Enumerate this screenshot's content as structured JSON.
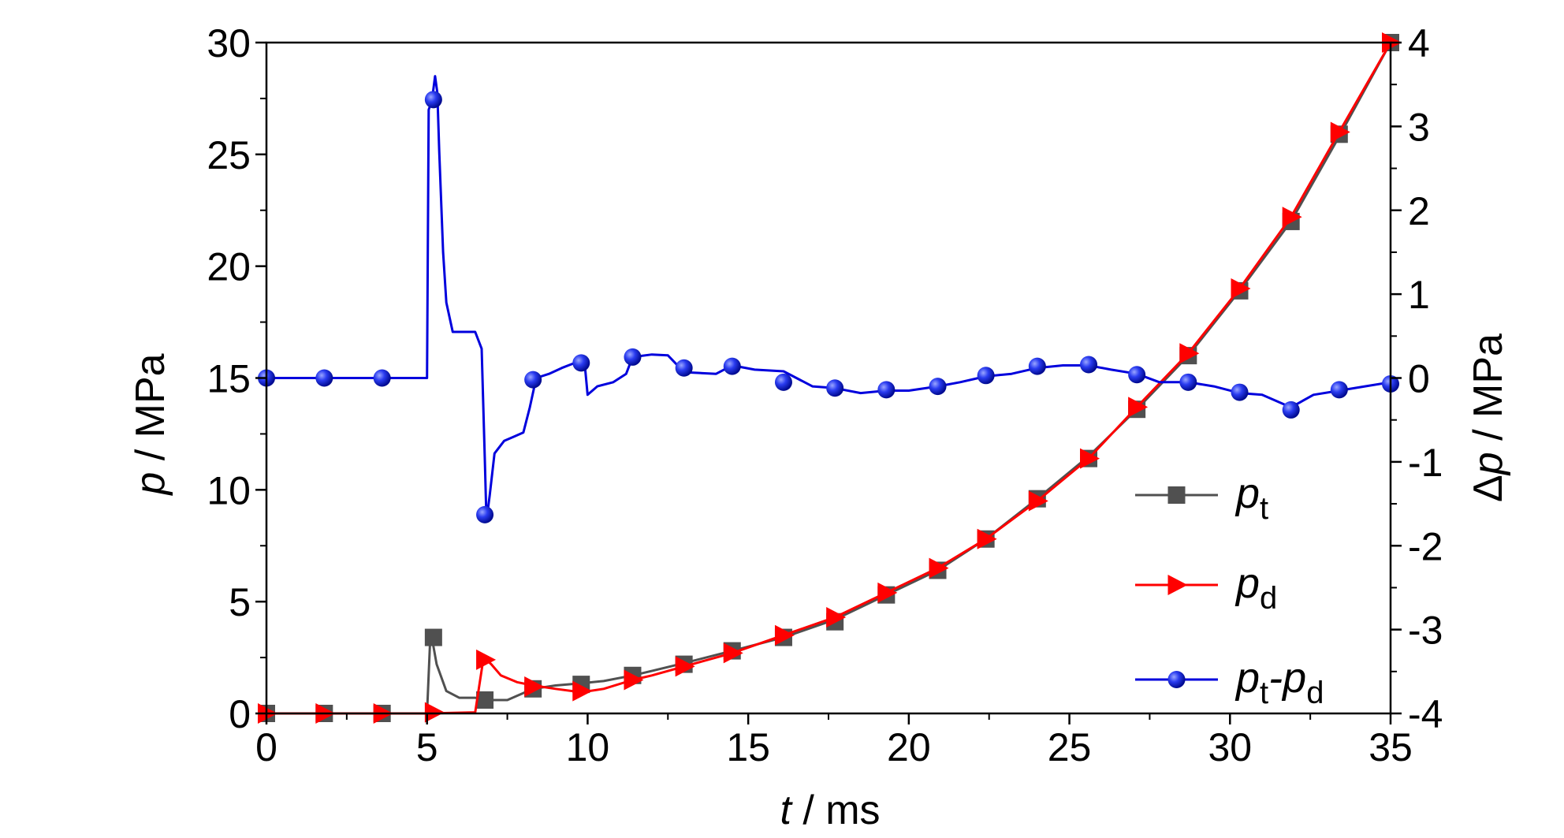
{
  "chart_data": {
    "type": "line",
    "xlabel_var": "t",
    "xlabel_unit": " / ms",
    "ylabel_left_var": "p",
    "ylabel_left_unit": " / MPa",
    "ylabel_right_prefix": "Δ",
    "ylabel_right_var": "p",
    "ylabel_right_unit": " / MPa",
    "xlim": [
      0,
      35
    ],
    "ylim_left": [
      0,
      30
    ],
    "ylim_right": [
      -4,
      4
    ],
    "x_ticks": [
      "0",
      "5",
      "10",
      "15",
      "20",
      "25",
      "30",
      "35"
    ],
    "y_left_ticks": [
      "0",
      "5",
      "10",
      "15",
      "20",
      "25",
      "30"
    ],
    "y_right_ticks": [
      "-4",
      "-3",
      "-2",
      "-1",
      "0",
      "1",
      "2",
      "3",
      "4"
    ],
    "grid": false,
    "legend_position": "bottom-right",
    "series": [
      {
        "name": "p_t",
        "legend_base": "p",
        "legend_sub": "t",
        "axis": "left",
        "color": "#505050",
        "marker": "square",
        "x": [
          0,
          1.8,
          3.6,
          5.0,
          5.1,
          5.15,
          5.3,
          5.6,
          6.0,
          6.5,
          6.9,
          7.5,
          8.3,
          9.0,
          9.8,
          10.5,
          11.4,
          12.0,
          13.0,
          14.5,
          16.1,
          17.7,
          19.3,
          20.9,
          22.4,
          24.0,
          25.6,
          27.1,
          28.7,
          30.3,
          31.9,
          33.4,
          35.0
        ],
        "y": [
          0,
          0,
          0,
          0,
          3.4,
          3.4,
          2.2,
          1.0,
          0.7,
          0.7,
          0.6,
          0.6,
          1.1,
          1.25,
          1.35,
          1.45,
          1.7,
          1.9,
          2.25,
          2.8,
          3.4,
          4.2,
          5.3,
          6.4,
          7.8,
          9.6,
          11.5,
          13.6,
          16.0,
          18.9,
          22.0,
          25.8,
          30.0
        ],
        "markers_x": [
          0,
          1.8,
          3.6,
          5.2,
          6.8,
          8.3,
          9.8,
          11.4,
          13.0,
          14.5,
          16.1,
          17.7,
          19.3,
          20.9,
          22.4,
          24.0,
          25.6,
          27.1,
          28.7,
          30.3,
          31.9,
          33.4,
          35.0
        ],
        "markers_y": [
          0,
          0,
          0,
          3.4,
          0.6,
          1.1,
          1.3,
          1.7,
          2.2,
          2.8,
          3.4,
          4.1,
          5.3,
          6.4,
          7.8,
          9.6,
          11.4,
          13.6,
          16.0,
          18.9,
          22.0,
          25.9,
          30.0
        ]
      },
      {
        "name": "p_d",
        "legend_base": "p",
        "legend_sub": "d",
        "axis": "left",
        "color": "#ff0000",
        "marker": "triangle-right",
        "x": [
          0,
          1.8,
          3.6,
          5.0,
          6.5,
          6.75,
          6.85,
          7.0,
          7.3,
          7.8,
          8.3,
          9.0,
          9.8,
          10.5,
          11.4,
          12.0,
          13.0,
          14.5,
          16.1,
          17.7,
          19.3,
          20.9,
          22.4,
          24.0,
          25.6,
          27.1,
          28.7,
          30.3,
          31.9,
          33.4,
          35.0
        ],
        "y": [
          0,
          0,
          0,
          0,
          0.05,
          2.4,
          2.4,
          2.2,
          1.7,
          1.4,
          1.25,
          1.1,
          0.95,
          1.1,
          1.5,
          1.7,
          2.1,
          2.7,
          3.5,
          4.3,
          5.4,
          6.5,
          7.8,
          9.5,
          11.4,
          13.7,
          16.1,
          19.0,
          22.2,
          26.0,
          30.0
        ],
        "markers_x": [
          0,
          1.8,
          3.6,
          5.2,
          6.8,
          8.3,
          9.8,
          11.4,
          13.0,
          14.5,
          16.1,
          17.7,
          19.3,
          20.9,
          22.4,
          24.0,
          25.6,
          27.1,
          28.7,
          30.3,
          31.9,
          33.4,
          35.0
        ],
        "markers_y": [
          0,
          0,
          0,
          0.05,
          2.4,
          1.2,
          1.0,
          1.5,
          2.1,
          2.7,
          3.5,
          4.3,
          5.4,
          6.5,
          7.8,
          9.5,
          11.4,
          13.7,
          16.1,
          19.0,
          22.2,
          26.0,
          30.0
        ]
      },
      {
        "name": "p_t-p_d",
        "legend_base": "p",
        "legend_sub": "t",
        "legend_mid": "-p",
        "legend_sub2": "d",
        "axis": "right",
        "color": "#0000dd",
        "marker": "sphere",
        "x": [
          0,
          1.8,
          3.6,
          5.0,
          5.05,
          5.15,
          5.25,
          5.32,
          5.38,
          5.5,
          5.6,
          5.8,
          6.0,
          6.5,
          6.7,
          6.8,
          6.85,
          6.95,
          7.1,
          7.4,
          7.7,
          8.0,
          8.2,
          8.4,
          8.8,
          9.2,
          9.6,
          9.9,
          10.0,
          10.3,
          10.8,
          11.2,
          11.4,
          12.0,
          12.5,
          13.0,
          14.0,
          14.5,
          15.2,
          16.1,
          17.0,
          17.7,
          18.5,
          19.3,
          20.0,
          20.9,
          21.6,
          22.4,
          23.2,
          24.0,
          24.8,
          25.6,
          26.3,
          27.1,
          27.8,
          28.7,
          29.5,
          30.3,
          31.0,
          31.9,
          32.6,
          33.4,
          34.2,
          35.0
        ],
        "y": [
          0,
          0,
          0,
          0,
          3.2,
          3.3,
          3.6,
          3.4,
          2.7,
          1.5,
          0.9,
          0.55,
          0.55,
          0.55,
          0.35,
          -1.0,
          -1.7,
          -1.4,
          -0.9,
          -0.75,
          -0.7,
          -0.65,
          -0.35,
          0.0,
          0.05,
          0.12,
          0.18,
          0.2,
          -0.2,
          -0.1,
          -0.05,
          0.05,
          0.25,
          0.28,
          0.27,
          0.07,
          0.05,
          0.15,
          0.1,
          0.08,
          -0.1,
          -0.12,
          -0.18,
          -0.15,
          -0.15,
          -0.1,
          -0.05,
          0.02,
          0.05,
          0.12,
          0.15,
          0.15,
          0.1,
          0.05,
          -0.05,
          -0.05,
          -0.1,
          -0.18,
          -0.2,
          -0.35,
          -0.2,
          -0.15,
          -0.1,
          -0.05
        ],
        "markers_x": [
          0,
          1.8,
          3.6,
          5.2,
          6.8,
          8.3,
          9.8,
          11.4,
          13.0,
          14.5,
          16.1,
          17.7,
          19.3,
          20.9,
          22.4,
          24.0,
          25.6,
          27.1,
          28.7,
          30.3,
          31.9,
          33.4,
          35.0
        ],
        "markers_y": [
          0,
          0,
          0,
          3.32,
          -1.63,
          -0.02,
          0.18,
          0.25,
          0.12,
          0.14,
          -0.05,
          -0.12,
          -0.14,
          -0.1,
          0.03,
          0.14,
          0.16,
          0.04,
          -0.05,
          -0.17,
          -0.38,
          -0.14,
          -0.07
        ]
      }
    ]
  }
}
